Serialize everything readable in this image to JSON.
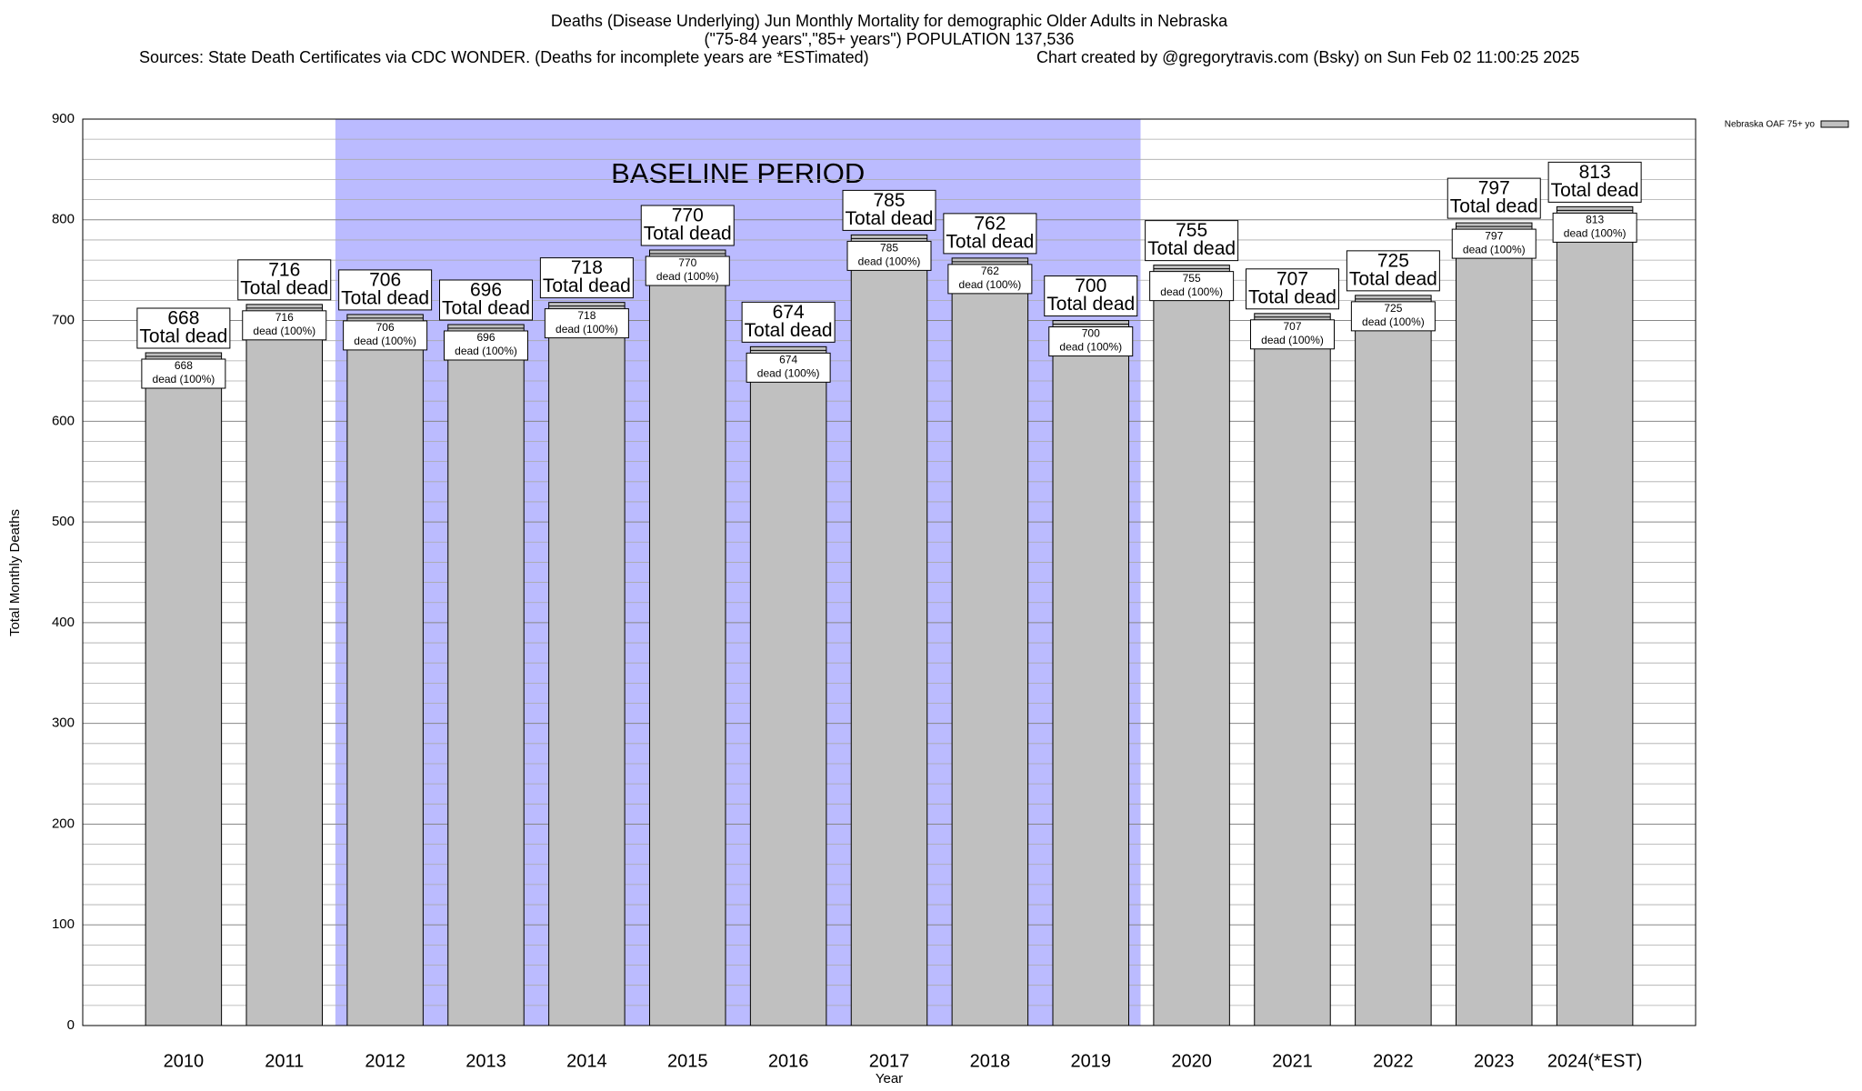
{
  "chart_data": {
    "type": "bar",
    "title": "Deaths (Disease Underlying) Jun Monthly Mortality for demographic Older Adults in Nebraska",
    "subtitle": "(\"75-84 years\",\"85+ years\") POPULATION 137,536",
    "sources": "Sources: State Death Certificates via CDC WONDER. (Deaths for incomplete years are *ESTimated)",
    "credit": "Chart created by @gregorytravis.com (Bsky) on Sun Feb 02 11:00:25 2025",
    "xlabel": "Year",
    "ylabel": "Total Monthly Deaths",
    "categories": [
      "2010",
      "2011",
      "2012",
      "2013",
      "2014",
      "2015",
      "2016",
      "2017",
      "2018",
      "2019",
      "2020",
      "2021",
      "2022",
      "2023",
      "2024(*EST)"
    ],
    "series": [
      {
        "name": "Nebraska OAF 75+ yo",
        "color": "#c0c0c0",
        "values": [
          668,
          716,
          706,
          696,
          718,
          770,
          674,
          785,
          762,
          700,
          755,
          707,
          725,
          797,
          813
        ]
      }
    ],
    "total_label": "Total dead",
    "segment_label": "dead (100%)",
    "baseline": {
      "label": "BASELINE PERIOD",
      "categories": [
        "2012",
        "2019"
      ],
      "color": "#bbbbff"
    },
    "ylim": [
      0,
      900
    ],
    "yticks": [
      0,
      100,
      200,
      300,
      400,
      500,
      600,
      700,
      800,
      900
    ],
    "minor_yticks": [
      20,
      40,
      60,
      80,
      120,
      140,
      160,
      180,
      220,
      240,
      260,
      280,
      320,
      340,
      360,
      380,
      420,
      440,
      460,
      480,
      520,
      540,
      560,
      580,
      620,
      640,
      660,
      680,
      720,
      740,
      760,
      780,
      820,
      840,
      860,
      880
    ],
    "grid": true,
    "legend": "top-right"
  }
}
